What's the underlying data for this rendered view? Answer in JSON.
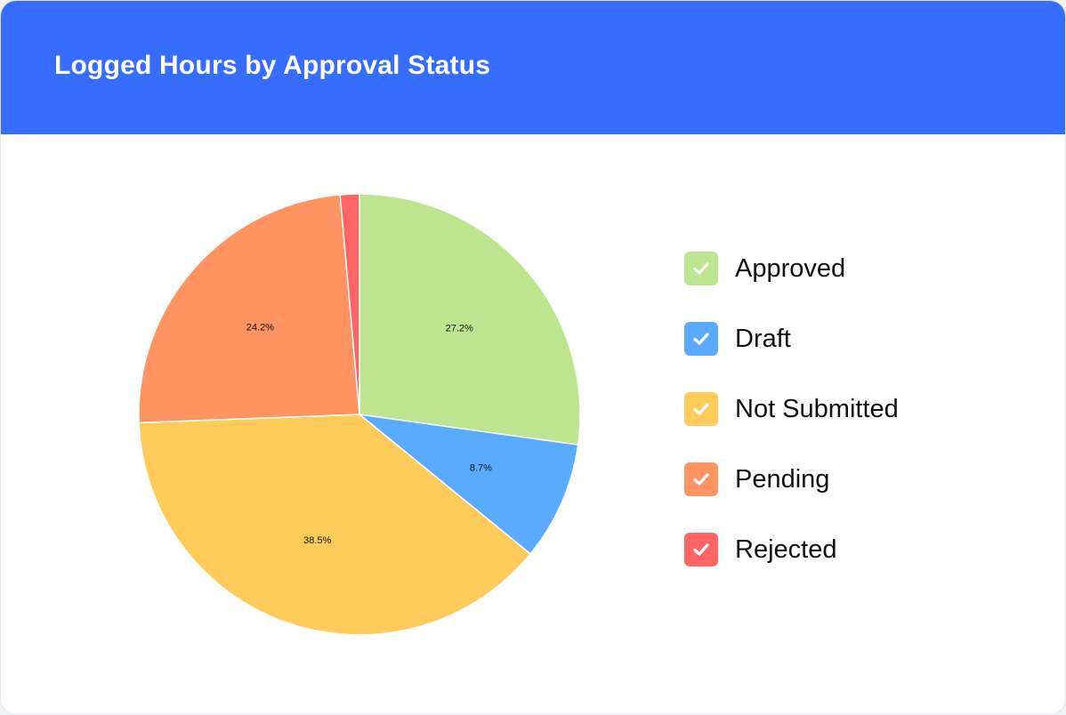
{
  "chart_data": {
    "type": "pie",
    "title": "Logged Hours by Approval Status",
    "slices": [
      {
        "name": "Approved",
        "value": 27.2,
        "label": "27.2%",
        "color": "#bde590"
      },
      {
        "name": "Draft",
        "value": 8.7,
        "label": "8.7%",
        "color": "#5aabff"
      },
      {
        "name": "Not Submitted",
        "value": 38.5,
        "label": "38.5%",
        "color": "#ffcb5b"
      },
      {
        "name": "Pending",
        "value": 24.2,
        "label": "24.2%",
        "color": "#ff9361"
      },
      {
        "name": "Rejected",
        "value": 1.4,
        "label": "",
        "color": "#ff6565"
      }
    ],
    "start_angle": "top",
    "direction": "clockwise",
    "legend_position": "right",
    "legend_icon": "check-icon"
  }
}
